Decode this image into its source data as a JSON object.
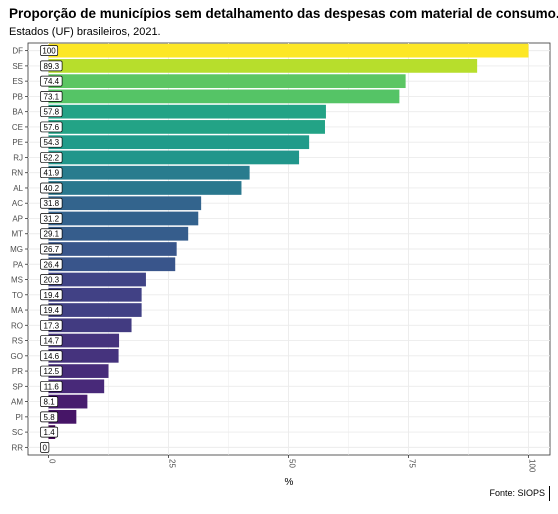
{
  "chart_data": {
    "type": "bar",
    "orientation": "horizontal",
    "title": "Proporção de municípios sem detalhamento das despesas com material de consumo.",
    "subtitle": "Estados (UF) brasileiros, 2021.",
    "xlabel": "%",
    "ylabel": "",
    "caption": "Fonte: SIOPS",
    "xlim": [
      0,
      100
    ],
    "x_ticks": [
      "0",
      "25",
      "50",
      "75",
      "100"
    ],
    "categories": [
      "DF",
      "SE",
      "ES",
      "PB",
      "BA",
      "CE",
      "PE",
      "RJ",
      "RN",
      "AL",
      "AC",
      "AP",
      "MT",
      "MG",
      "PA",
      "MS",
      "TO",
      "MA",
      "RO",
      "RS",
      "GO",
      "PR",
      "SP",
      "AM",
      "PI",
      "SC",
      "RR"
    ],
    "values": [
      100,
      89.3,
      74.4,
      73.1,
      57.8,
      57.6,
      54.3,
      52.2,
      41.9,
      40.2,
      31.8,
      31.2,
      29.1,
      26.7,
      26.4,
      20.3,
      19.4,
      19.4,
      17.3,
      14.7,
      14.6,
      12.5,
      11.6,
      8.1,
      5.8,
      1.4,
      0
    ],
    "data_labels": [
      "100",
      "89.3",
      "74.4",
      "73.1",
      "57.8",
      "57.6",
      "54.3",
      "52.2",
      "41.9",
      "40.2",
      "31.8",
      "31.2",
      "29.1",
      "26.7",
      "26.4",
      "20.3",
      "19.4",
      "19.4",
      "17.3",
      "14.7",
      "14.6",
      "12.5",
      "11.6",
      "8.1",
      "5.8",
      "1.4",
      "0"
    ],
    "colormap": "viridis",
    "grid": true,
    "legend": "none"
  }
}
